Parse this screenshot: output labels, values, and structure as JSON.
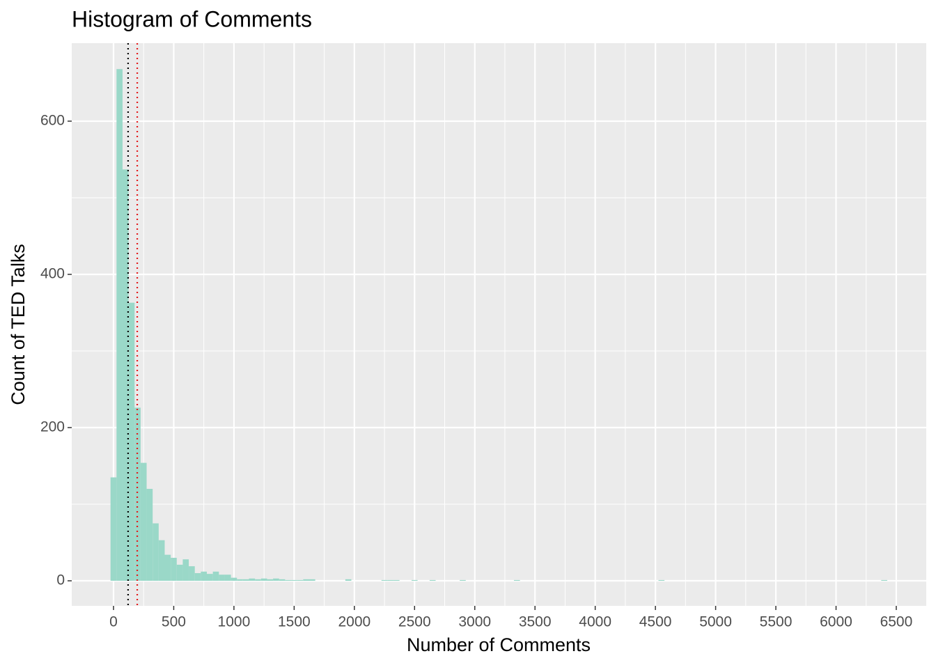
{
  "chart_data": {
    "type": "histogram",
    "title": "Histogram of Comments",
    "x_label": "Number of Comments",
    "y_label": "Count of TED Talks",
    "color": "#9ad8c8",
    "bins": [
      -25,
      25,
      75,
      125,
      175,
      225,
      275,
      325,
      375,
      425,
      475,
      525,
      575,
      625,
      675,
      725,
      775,
      825,
      875,
      925,
      975,
      1025,
      1075,
      1125,
      1175,
      1225,
      1275,
      1325,
      1375,
      1425,
      1475,
      1525,
      1575,
      1625,
      1675,
      1725,
      1775,
      1825,
      1875,
      1925,
      1975,
      2025,
      2075,
      2125,
      2175,
      2225,
      2275,
      2325,
      2375,
      2425,
      2475,
      2525,
      2575,
      2625,
      2675,
      2725,
      2775,
      2825,
      2875,
      2925,
      2975,
      3025,
      3075,
      3125,
      3175,
      3225,
      3275,
      3325,
      3375,
      3425,
      3475,
      3525,
      3575,
      3625,
      3675,
      3725,
      3775,
      3825,
      3875,
      3925,
      3975,
      4025,
      4075,
      4125,
      4175,
      4225,
      4275,
      4325,
      4375,
      4425,
      4475,
      4525,
      4575,
      4625,
      4675,
      4725,
      4775,
      4825,
      4875,
      4925,
      4975,
      5025,
      5075,
      5125,
      5175,
      5225,
      5275,
      5325,
      5375,
      5425,
      5475,
      5525,
      5575,
      5625,
      5675,
      5725,
      5775,
      5825,
      5875,
      5925,
      5975,
      6025,
      6075,
      6125,
      6175,
      6225,
      6275,
      6325,
      6375,
      6425
    ],
    "counts": [
      135,
      668,
      537,
      363,
      226,
      154,
      120,
      75,
      53,
      34,
      30,
      21,
      28,
      19,
      10,
      12,
      9,
      12,
      8,
      8,
      4,
      2,
      2,
      3,
      2,
      3,
      2,
      3,
      2,
      1,
      1,
      1,
      2,
      2,
      0,
      0,
      0,
      0,
      0,
      2,
      0,
      0,
      0,
      0,
      0,
      1,
      1,
      1,
      0,
      0,
      1,
      0,
      0,
      1,
      0,
      0,
      0,
      0,
      1,
      0,
      0,
      0,
      0,
      0,
      0,
      0,
      0,
      1,
      0,
      0,
      0,
      0,
      0,
      0,
      0,
      0,
      0,
      0,
      0,
      0,
      0,
      0,
      0,
      0,
      0,
      0,
      0,
      0,
      0,
      0,
      0,
      1,
      0,
      0,
      0,
      0,
      0,
      0,
      0,
      0,
      0,
      0,
      0,
      0,
      0,
      0,
      0,
      0,
      0,
      0,
      0,
      0,
      0,
      0,
      0,
      0,
      0,
      0,
      0,
      0,
      0,
      0,
      0,
      0,
      0,
      0,
      0,
      0,
      1
    ],
    "vlines": [
      {
        "value": 121,
        "color": "#000000"
      },
      {
        "value": 197,
        "color": "#e41a1c"
      }
    ],
    "xlim": [
      -347,
      6749
    ],
    "ylim": [
      -32.7,
      701.8
    ],
    "xticks": [
      0,
      500,
      1000,
      1500,
      2000,
      2500,
      3000,
      3500,
      4000,
      4500,
      5000,
      5500,
      6000,
      6500
    ],
    "yticks": [
      0,
      200,
      400,
      600
    ],
    "grid": true
  }
}
